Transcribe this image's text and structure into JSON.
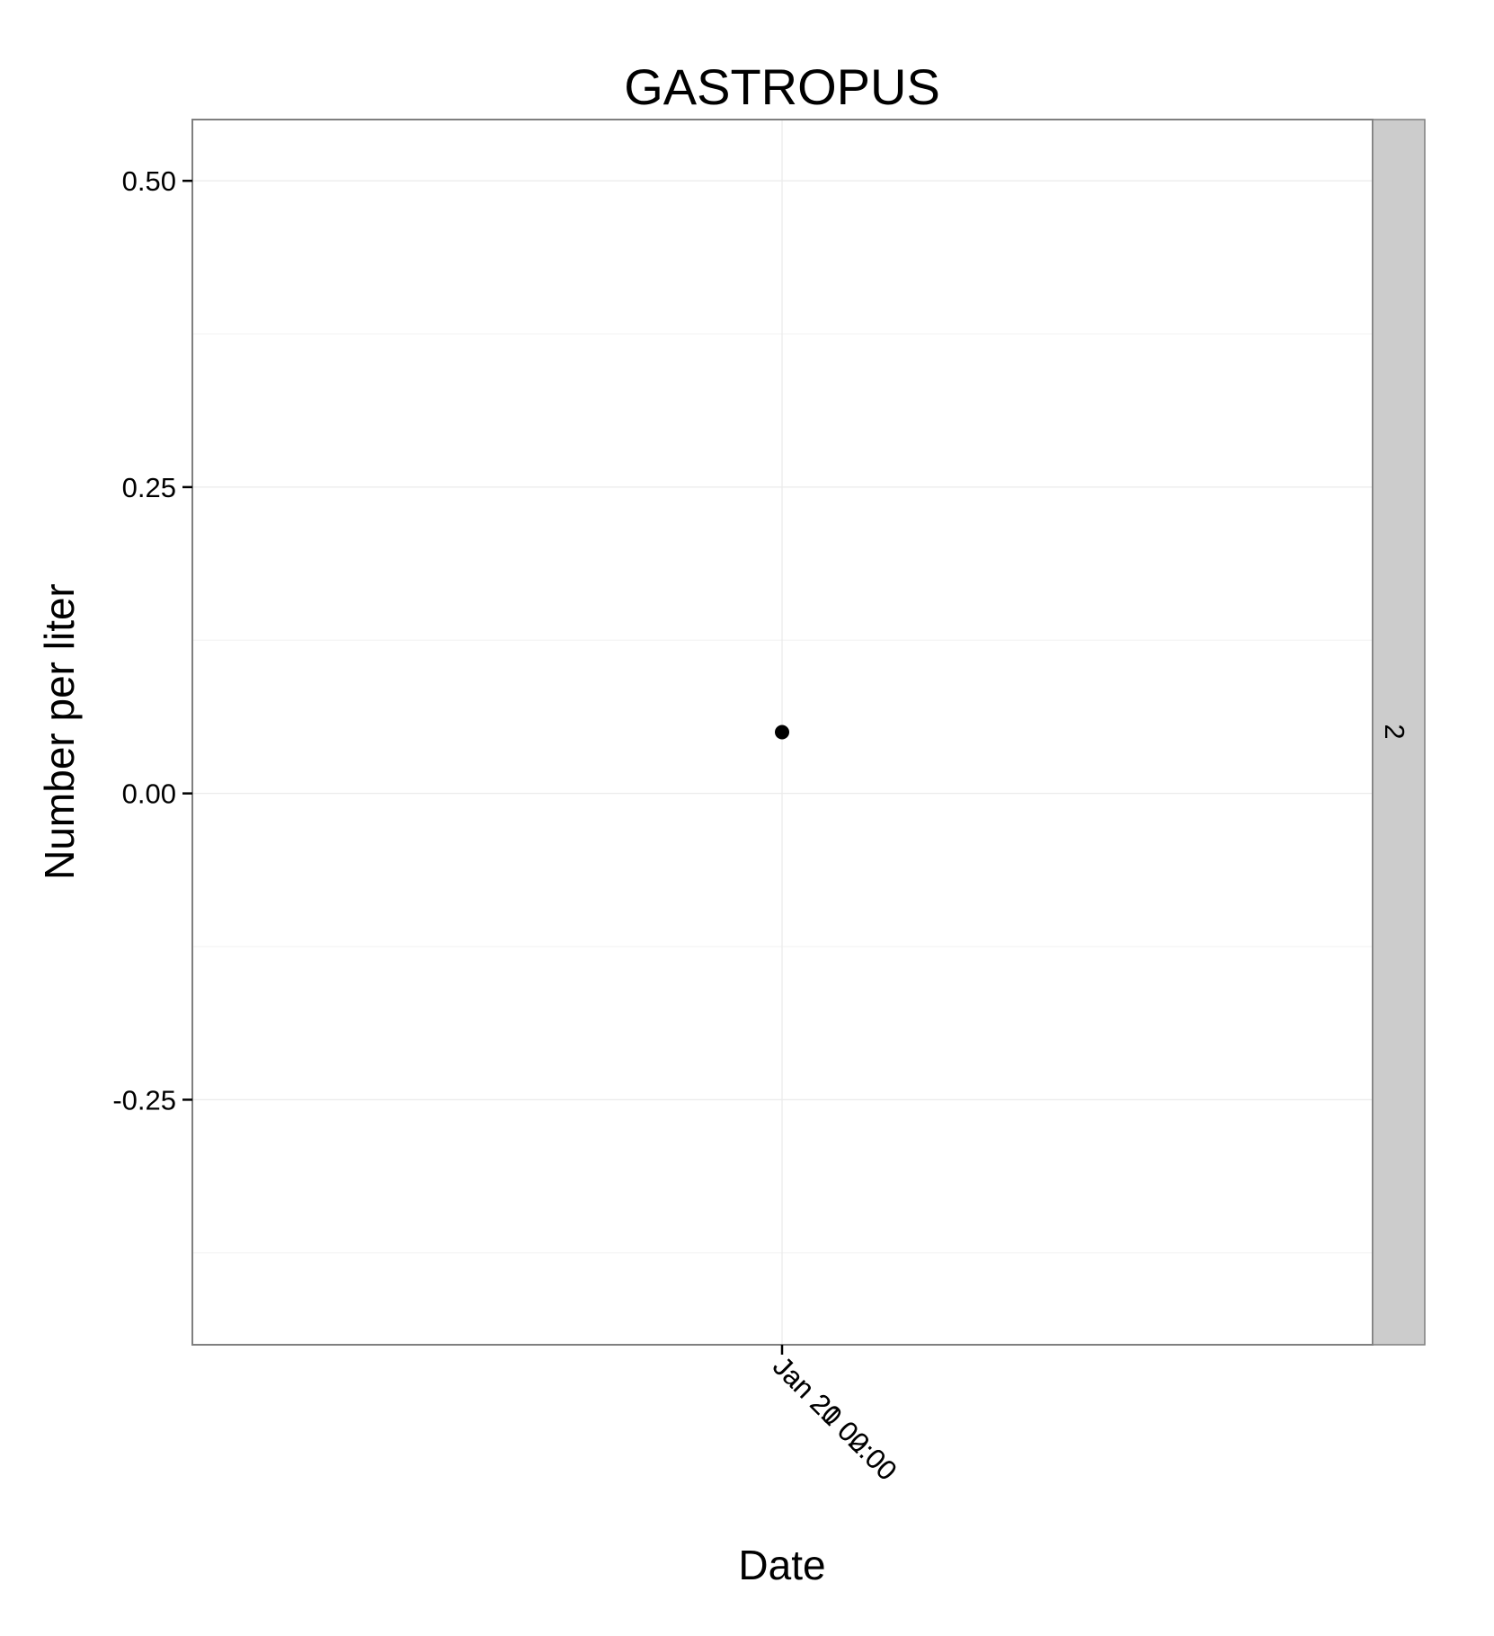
{
  "chart_data": {
    "type": "scatter",
    "title": "GASTROPUS",
    "xlabel": "Date",
    "ylabel": "Number per liter",
    "facet_strip_label": "2",
    "x_tick_labels": [
      "Jan 20 02:00",
      "Jan 21 00:00"
    ],
    "y_ticks": [
      -0.25,
      0.0,
      0.25,
      0.5
    ],
    "y_tick_labels": [
      "-0.25",
      "0.00",
      "0.25",
      "0.50"
    ],
    "ylim": [
      -0.45,
      0.55
    ],
    "grid": true,
    "legend": "none",
    "points": [
      {
        "x": "Jan 21 00:00",
        "y": 0.05
      }
    ],
    "colors": {
      "point": "#000000",
      "panel_border": "#7f7f7f",
      "strip_fill": "#cccccc",
      "grid": "#ebebeb"
    }
  }
}
